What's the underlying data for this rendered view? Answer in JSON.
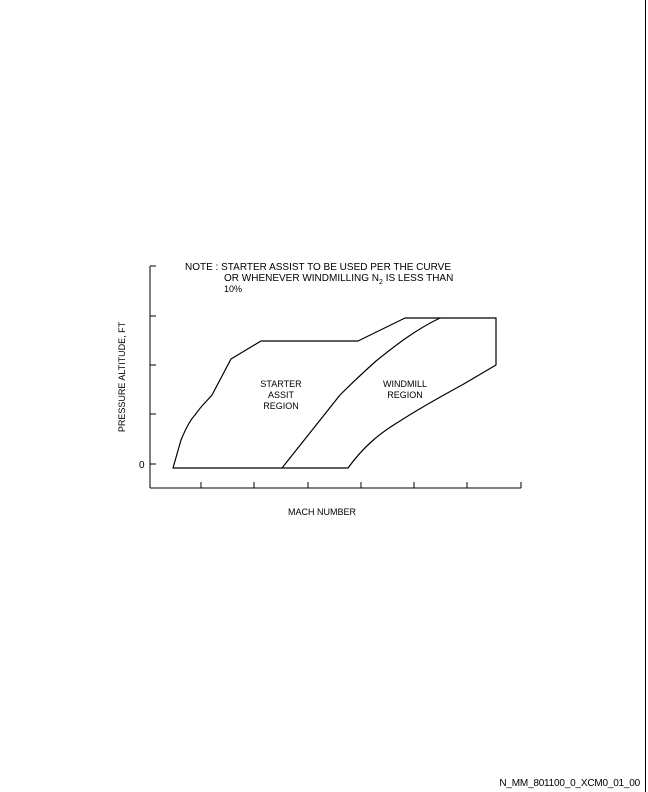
{
  "note": {
    "line1": "NOTE : STARTER ASSIST TO BE USED PER THE CURVE",
    "line2_prefix": "OR WHENEVER WINDMILLING N",
    "line2_subscript": "2",
    "line2_suffix": " IS LESS THAN",
    "line3": "10%"
  },
  "axes": {
    "y_label": "PRESSURE ALTITUDE, FT",
    "y_tick_zero": "0",
    "x_label": "MACH NUMBER"
  },
  "regions": {
    "starter": [
      "STARTER",
      "ASSIT",
      "REGION"
    ],
    "windmill": [
      "WINDMILL",
      "REGION"
    ]
  },
  "figure_id": "N_MM_801100_0_XCM0_01_00",
  "colors": {
    "line": "#000000",
    "background": "#ffffff"
  }
}
